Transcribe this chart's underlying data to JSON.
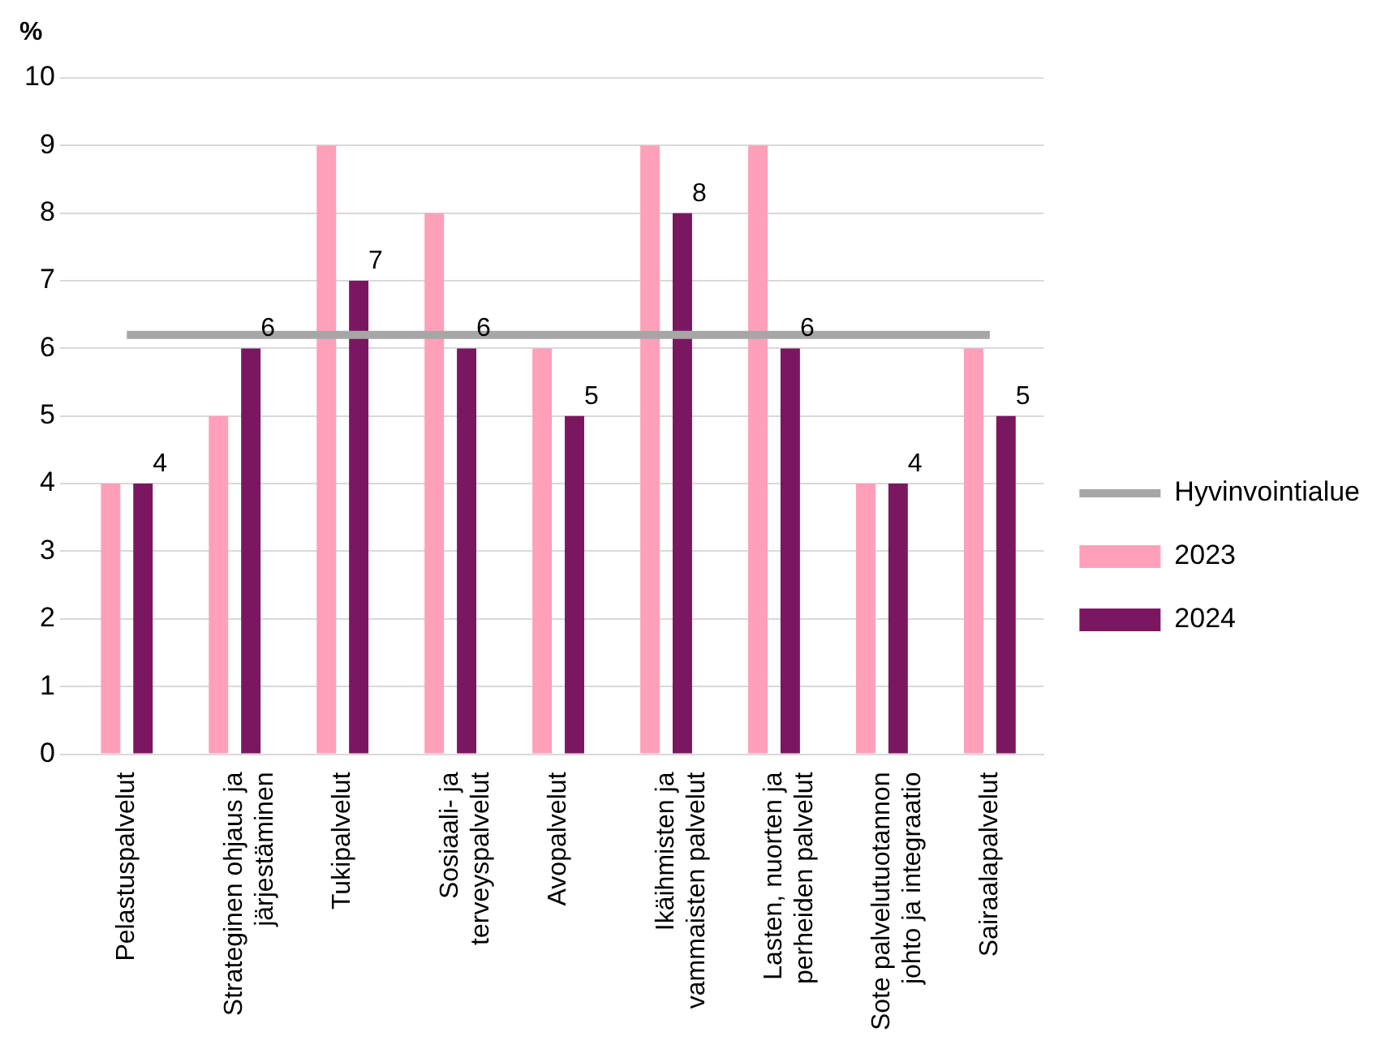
{
  "chart_data": {
    "type": "bar",
    "ylabel": "%",
    "categories": [
      "Pelastuspalvelut",
      "Strateginen ohjaus ja järjestäminen",
      "Tukipalvelut",
      "Sosiaali- ja terveyspalvelut",
      "Avopalvelut",
      "Ikäihmisten ja vammaisten palvelut",
      "Lasten, nuorten ja perheiden palvelut",
      "Sote palvelutuotannon johto ja integraatio",
      "Sairaalapalvelut"
    ],
    "series": [
      {
        "name": "2023",
        "color": "#ff9fba",
        "values": [
          4,
          5,
          9,
          8,
          6,
          9,
          9,
          4,
          6
        ]
      },
      {
        "name": "2024",
        "color": "#7b1660",
        "values": [
          4,
          6,
          7,
          6,
          5,
          8,
          6,
          4,
          5
        ],
        "value_labels": [
          "4",
          "6",
          "7",
          "6",
          "5",
          "8",
          "6",
          "4",
          "5"
        ]
      },
      {
        "name": "Hyvinvointialue",
        "type": "line",
        "color": "#a6a6a6",
        "values": [
          6.2,
          6.2,
          6.2,
          6.2,
          6.2,
          6.2,
          6.2,
          6.2,
          6.2
        ]
      }
    ],
    "ylim": [
      0,
      10
    ],
    "yticks": [
      0,
      1,
      2,
      3,
      4,
      5,
      6,
      7,
      8,
      9,
      10
    ],
    "grid": "y",
    "legend": "right",
    "marker": "none"
  }
}
